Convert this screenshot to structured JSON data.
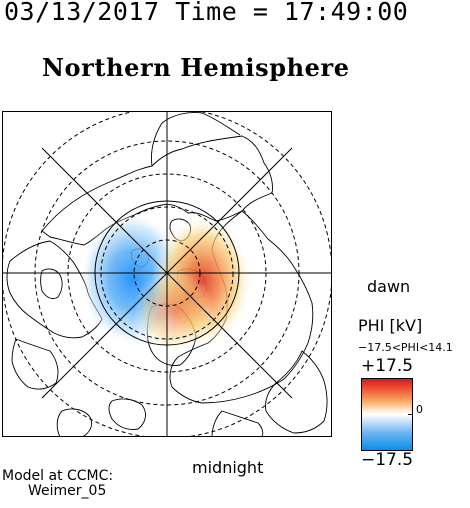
{
  "header": {
    "timestamp": "03/13/2017 Time = 17:49:00",
    "title": "Northern Hemisphere"
  },
  "map": {
    "projection": "polar",
    "grid_circles": "dashed",
    "potential_pattern": {
      "negative_cell": "dusk side (left)",
      "positive_cell": "dawn side (right)"
    },
    "labels": {
      "dawn": "dawn",
      "midnight": "midnight"
    }
  },
  "colorbar": {
    "title": "PHI [kV]",
    "range_text": "−17.5<PHI<14.1",
    "max_label": "+17.5",
    "min_label": "−17.5",
    "zero_label": "0",
    "colors": {
      "max": "#d7191c",
      "mid": "#ffffff",
      "min": "#0c8ee8"
    }
  },
  "footer": {
    "model_line1": "Model at CCMC:",
    "model_line2": "Weimer_05"
  }
}
